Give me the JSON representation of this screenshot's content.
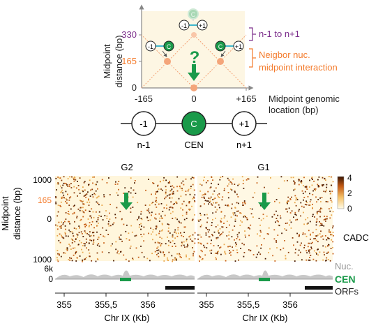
{
  "schematic": {
    "y_axis_label_line1": "Midpoint",
    "y_axis_label_line2": "distance (bp)",
    "y_ticks": [
      "330",
      "165",
      "0"
    ],
    "x_ticks": [
      "-165",
      "0",
      "+165"
    ],
    "x_axis_label_line1": "Midpoint genomic",
    "x_axis_label_line2": "location (bp)",
    "label_n1_to_n1_plus": "n-1 to n+1",
    "label_neighbor_line1": "Neigbor nuc.",
    "label_neighbor_line2": "midpoint interaction",
    "question_mark": "?",
    "nucleosomes": {
      "left_label": "-1",
      "center_label": "C",
      "right_label": "+1",
      "left_caption": "n-1",
      "center_caption": "CEN",
      "right_caption": "n+1"
    },
    "mini_left_pair": [
      "-1",
      "C"
    ],
    "mini_top_pair": [
      "-1",
      "+1"
    ],
    "mini_top_ghost": "C",
    "mini_right_pair": [
      "C",
      "+1"
    ],
    "colors": {
      "cen_green": "#1a9a4a",
      "purple": "#7b2d8b",
      "orange": "#f47a2a",
      "background": "#fdf6e3"
    }
  },
  "heatmap": {
    "panel_titles": [
      "G2",
      "G1"
    ],
    "y_axis_label_line1": "Midpoint",
    "y_axis_label_line2": "distance (bp)",
    "y_ticks": [
      "1000",
      "0",
      "1000"
    ],
    "y_tick_165": "165",
    "colorbar_ticks": [
      "4",
      "2",
      "0"
    ],
    "side_label": "CADC",
    "track_y_ticks": [
      "6k",
      "0"
    ],
    "track_labels": [
      "Nuc.",
      "CEN",
      "ORFs"
    ],
    "x_ticks": [
      "355",
      "355,5",
      "356"
    ],
    "x_axis_label": "Chr IX (Kb)"
  }
}
